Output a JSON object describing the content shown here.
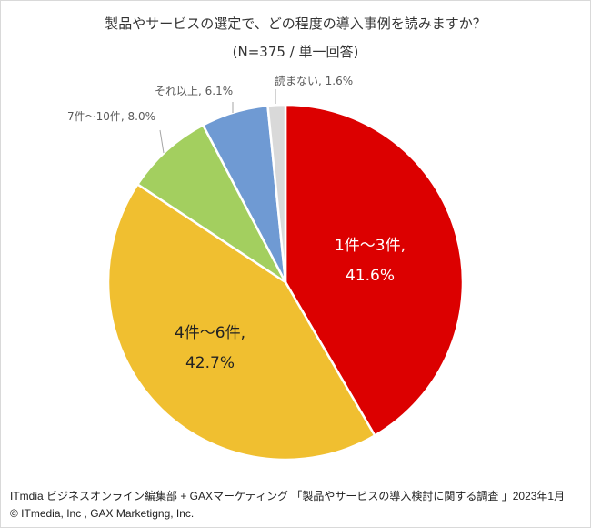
{
  "title": "製品やサービスの選定で、どの程度の導入事例を読みますか？",
  "subtitle": "(N=375 / 単一回答)",
  "labels": {
    "s1_line1": "1件～3件,",
    "s1_line2": "41.6%",
    "s2_line1": "4件～6件,",
    "s2_line2": "42.7%",
    "s3": "7件～10件, 8.0%",
    "s4": "それ以上, 6.1%",
    "s5": "読まない, 1.6%"
  },
  "footer": {
    "source": "ITmdia ビジネスオンライン編集部 + GAXマーケティング 「製品やサービスの導入検討に関する調査 」2023年1月",
    "copyright": "© ITmedia, Inc , GAX Marketigng, Inc."
  },
  "chart_data": {
    "type": "pie",
    "title": "製品やサービスの選定で、どの程度の導入事例を読みますか？",
    "subtitle": "(N=375 / 単一回答)",
    "categories": [
      "1件～3件",
      "4件～6件",
      "7件～10件",
      "それ以上",
      "読まない"
    ],
    "values": [
      41.6,
      42.7,
      8.0,
      6.1,
      1.6
    ],
    "unit": "%",
    "colors": [
      "#dc0000",
      "#f0bf30",
      "#a3cf5f",
      "#6f9ad3",
      "#d9d9d9"
    ],
    "start_angle": "12 o'clock, clockwise",
    "legend": "none (data labels)"
  }
}
